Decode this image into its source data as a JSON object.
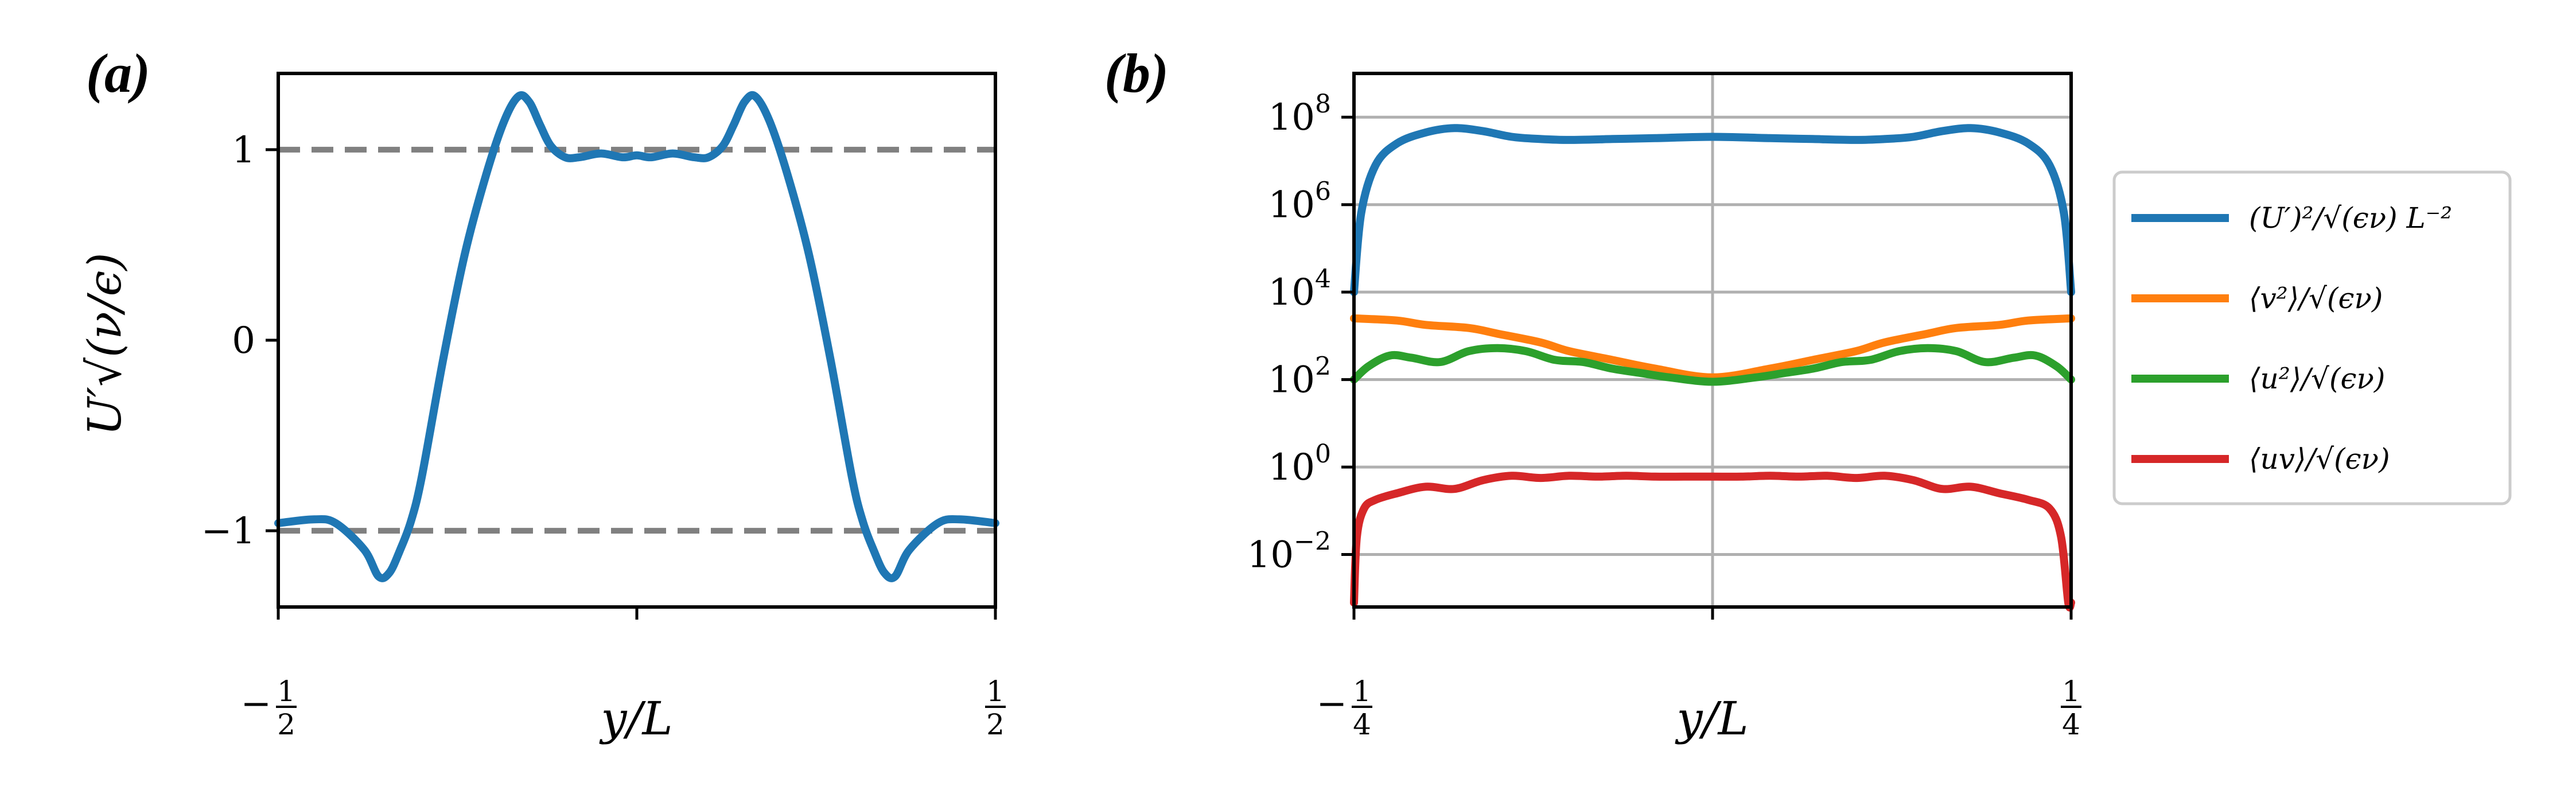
{
  "chart_data": [
    {
      "panel": "(a)",
      "type": "line",
      "xlabel": "y/L",
      "ylabel": "U′√(ν/ϵ)",
      "xlim": [
        -0.5,
        0.5
      ],
      "ylim": [
        -1.4,
        1.4
      ],
      "xticks": [
        {
          "value": -0.5,
          "label": "−1/2",
          "sign": "−",
          "num": "1",
          "den": "2"
        },
        {
          "value": 0,
          "label": ""
        },
        {
          "value": 0.5,
          "label": "1/2",
          "sign": "",
          "num": "1",
          "den": "2"
        }
      ],
      "yticks": [
        {
          "value": 1,
          "label": "1"
        },
        {
          "value": 0,
          "label": "0"
        },
        {
          "value": -1,
          "label": "−1"
        }
      ],
      "grid": false,
      "reference_lines": [
        {
          "y": 1,
          "style": "dashed",
          "color": "#808080"
        },
        {
          "y": -1,
          "style": "dashed",
          "color": "#808080"
        }
      ],
      "series": [
        {
          "color": "#1f77b4",
          "x": [
            -0.5,
            -0.45,
            -0.42,
            -0.38,
            -0.36,
            -0.345,
            -0.33,
            -0.315,
            -0.3,
            -0.27,
            -0.24,
            -0.21,
            -0.185,
            -0.165,
            -0.15,
            -0.135,
            -0.12,
            -0.1,
            -0.08,
            -0.05,
            -0.02,
            0.0,
            0.02,
            0.05,
            0.08,
            0.1,
            0.12,
            0.135,
            0.15,
            0.165,
            0.185,
            0.21,
            0.24,
            0.27,
            0.3,
            0.315,
            0.33,
            0.345,
            0.36,
            0.38,
            0.42,
            0.45,
            0.5
          ],
          "y": [
            -0.96,
            -0.94,
            -0.96,
            -1.1,
            -1.24,
            -1.22,
            -1.1,
            -0.95,
            -0.72,
            -0.1,
            0.45,
            0.87,
            1.15,
            1.28,
            1.25,
            1.13,
            1.02,
            0.96,
            0.96,
            0.98,
            0.96,
            0.97,
            0.96,
            0.98,
            0.96,
            0.96,
            1.02,
            1.13,
            1.25,
            1.28,
            1.15,
            0.87,
            0.45,
            -0.1,
            -0.72,
            -0.95,
            -1.1,
            -1.22,
            -1.24,
            -1.1,
            -0.96,
            -0.94,
            -0.96
          ]
        }
      ]
    },
    {
      "panel": "(b)",
      "type": "line",
      "xlabel": "y/L",
      "ylabel": "",
      "xlim": [
        -0.25,
        0.25
      ],
      "ylim_log10": [
        -3.2,
        9.0
      ],
      "yscale": "log",
      "xticks": [
        {
          "value": -0.25,
          "label": "−1/4",
          "sign": "−",
          "num": "1",
          "den": "4"
        },
        {
          "value": 0,
          "label": ""
        },
        {
          "value": 0.25,
          "label": "1/4",
          "sign": "",
          "num": "1",
          "den": "4"
        }
      ],
      "yticks": [
        {
          "value": 8,
          "label": "10^8",
          "base": "10",
          "exp": "8"
        },
        {
          "value": 6,
          "label": "10^6",
          "base": "10",
          "exp": "6"
        },
        {
          "value": 4,
          "label": "10^4",
          "base": "10",
          "exp": "4"
        },
        {
          "value": 2,
          "label": "10^2",
          "base": "10",
          "exp": "2"
        },
        {
          "value": 0,
          "label": "10^0",
          "base": "10",
          "exp": "0"
        },
        {
          "value": -2,
          "label": "10^−2",
          "base": "10",
          "exp": "−2"
        }
      ],
      "grid": true,
      "legend_position": "right-outside",
      "series": [
        {
          "name": "(U′)²/√(ϵν) L⁻²",
          "color": "#1f77b4",
          "x": [
            -0.25,
            -0.245,
            -0.235,
            -0.22,
            -0.2,
            -0.18,
            -0.16,
            -0.14,
            -0.12,
            -0.1,
            -0.07,
            -0.04,
            0.0,
            0.04,
            0.07,
            0.1,
            0.12,
            0.14,
            0.16,
            0.18,
            0.2,
            0.22,
            0.235,
            0.245,
            0.25
          ],
          "y_log10": [
            4.0,
            5.8,
            6.9,
            7.4,
            7.65,
            7.75,
            7.68,
            7.55,
            7.5,
            7.48,
            7.5,
            7.52,
            7.55,
            7.52,
            7.5,
            7.48,
            7.5,
            7.55,
            7.68,
            7.75,
            7.65,
            7.4,
            6.9,
            5.8,
            4.0
          ]
        },
        {
          "name": "⟨v²⟩/√(ϵν)",
          "color": "#ff7f0e",
          "x": [
            -0.25,
            -0.22,
            -0.2,
            -0.17,
            -0.15,
            -0.12,
            -0.1,
            -0.07,
            -0.04,
            0.0,
            0.04,
            0.07,
            0.1,
            0.12,
            0.15,
            0.17,
            0.2,
            0.22,
            0.25
          ],
          "y_log10": [
            3.4,
            3.35,
            3.25,
            3.18,
            3.05,
            2.85,
            2.65,
            2.45,
            2.25,
            2.05,
            2.25,
            2.45,
            2.65,
            2.85,
            3.05,
            3.18,
            3.25,
            3.35,
            3.4
          ]
        },
        {
          "name": "⟨u²⟩/√(ϵν)",
          "color": "#2ca02c",
          "x": [
            -0.25,
            -0.24,
            -0.225,
            -0.21,
            -0.19,
            -0.17,
            -0.15,
            -0.13,
            -0.11,
            -0.09,
            -0.07,
            -0.05,
            -0.03,
            0.0,
            0.03,
            0.05,
            0.07,
            0.09,
            0.11,
            0.13,
            0.15,
            0.17,
            0.19,
            0.21,
            0.225,
            0.24,
            0.25
          ],
          "y_log10": [
            2.0,
            2.3,
            2.55,
            2.5,
            2.4,
            2.65,
            2.72,
            2.65,
            2.45,
            2.4,
            2.25,
            2.15,
            2.05,
            1.95,
            2.05,
            2.15,
            2.25,
            2.4,
            2.45,
            2.65,
            2.72,
            2.65,
            2.4,
            2.5,
            2.55,
            2.3,
            2.0
          ]
        },
        {
          "name": "⟨uv⟩/√(ϵν)",
          "color": "#d62728",
          "x": [
            -0.25,
            -0.248,
            -0.243,
            -0.235,
            -0.22,
            -0.2,
            -0.18,
            -0.16,
            -0.14,
            -0.12,
            -0.1,
            -0.08,
            -0.06,
            -0.04,
            -0.02,
            0.0,
            0.02,
            0.04,
            0.06,
            0.08,
            0.1,
            0.12,
            0.14,
            0.16,
            0.18,
            0.2,
            0.22,
            0.235,
            0.243,
            0.248,
            0.25
          ],
          "y_log10": [
            -3.1,
            -1.6,
            -0.95,
            -0.75,
            -0.6,
            -0.45,
            -0.5,
            -0.3,
            -0.2,
            -0.25,
            -0.2,
            -0.22,
            -0.2,
            -0.22,
            -0.22,
            -0.22,
            -0.22,
            -0.2,
            -0.22,
            -0.2,
            -0.25,
            -0.2,
            -0.3,
            -0.5,
            -0.45,
            -0.6,
            -0.75,
            -0.95,
            -1.6,
            -3.1,
            -3.1
          ]
        }
      ]
    }
  ]
}
